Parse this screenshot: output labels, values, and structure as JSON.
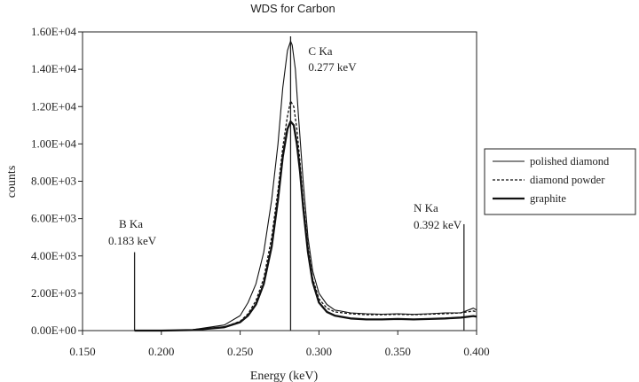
{
  "chart_data": {
    "type": "line",
    "title": "WDS for Carbon",
    "xlabel": "Energy (keV)",
    "ylabel": "counts",
    "xlim": [
      0.15,
      0.4
    ],
    "ylim": [
      0,
      16000
    ],
    "x_ticks": [
      "0.150",
      "0.200",
      "0.250",
      "0.300",
      "0.350",
      "0.400"
    ],
    "y_ticks": [
      "0.00E+00",
      "2.00E+03",
      "4.00E+03",
      "6.00E+03",
      "8.00E+03",
      "1.00E+04",
      "1.20E+04",
      "1.40E+04",
      "1.60E+04"
    ],
    "grid": false,
    "legend_position": "right",
    "series": [
      {
        "name": "polished diamond",
        "style": "thin-solid",
        "x": [
          0.183,
          0.2,
          0.22,
          0.24,
          0.25,
          0.255,
          0.26,
          0.265,
          0.27,
          0.274,
          0.277,
          0.28,
          0.282,
          0.283,
          0.285,
          0.287,
          0.29,
          0.293,
          0.296,
          0.3,
          0.305,
          0.31,
          0.32,
          0.33,
          0.34,
          0.35,
          0.36,
          0.37,
          0.38,
          0.39,
          0.398,
          0.4
        ],
        "y": [
          0,
          0,
          50,
          300,
          800,
          1500,
          2500,
          4200,
          7000,
          10000,
          13000,
          15000,
          15500,
          15300,
          14000,
          11500,
          8000,
          5000,
          3200,
          2000,
          1400,
          1100,
          950,
          900,
          880,
          900,
          870,
          900,
          950,
          950,
          1200,
          1100
        ]
      },
      {
        "name": "diamond powder",
        "style": "dashed",
        "x": [
          0.183,
          0.2,
          0.22,
          0.24,
          0.25,
          0.255,
          0.26,
          0.265,
          0.27,
          0.274,
          0.277,
          0.28,
          0.282,
          0.284,
          0.286,
          0.288,
          0.29,
          0.293,
          0.296,
          0.3,
          0.305,
          0.31,
          0.32,
          0.33,
          0.34,
          0.35,
          0.36,
          0.37,
          0.38,
          0.39,
          0.398,
          0.4
        ],
        "y": [
          0,
          0,
          30,
          200,
          500,
          900,
          1600,
          2800,
          5000,
          7500,
          9800,
          11500,
          12300,
          12000,
          10800,
          9000,
          7000,
          4500,
          2800,
          1700,
          1200,
          1000,
          900,
          850,
          850,
          870,
          850,
          880,
          900,
          950,
          1050,
          1000
        ]
      },
      {
        "name": "graphite",
        "style": "thick-solid",
        "x": [
          0.183,
          0.2,
          0.22,
          0.24,
          0.25,
          0.255,
          0.26,
          0.265,
          0.27,
          0.274,
          0.277,
          0.28,
          0.282,
          0.284,
          0.286,
          0.288,
          0.29,
          0.293,
          0.296,
          0.3,
          0.305,
          0.31,
          0.32,
          0.33,
          0.34,
          0.35,
          0.36,
          0.37,
          0.38,
          0.39,
          0.398,
          0.4
        ],
        "y": [
          0,
          0,
          30,
          180,
          450,
          800,
          1400,
          2500,
          4500,
          7000,
          9300,
          10800,
          11200,
          11000,
          10000,
          8500,
          6600,
          4200,
          2600,
          1500,
          1000,
          800,
          650,
          600,
          600,
          620,
          600,
          620,
          650,
          700,
          780,
          750
        ]
      }
    ],
    "annotations": [
      {
        "line1": "C Ka",
        "line2": "0.277 keV",
        "x": 0.282
      },
      {
        "line1": "B Ka",
        "line2": "0.183 keV",
        "x": 0.183,
        "marker_top": 4200
      },
      {
        "line1": "N Ka",
        "line2": "0.392 keV",
        "x": 0.392,
        "marker_top": 5700
      }
    ]
  }
}
